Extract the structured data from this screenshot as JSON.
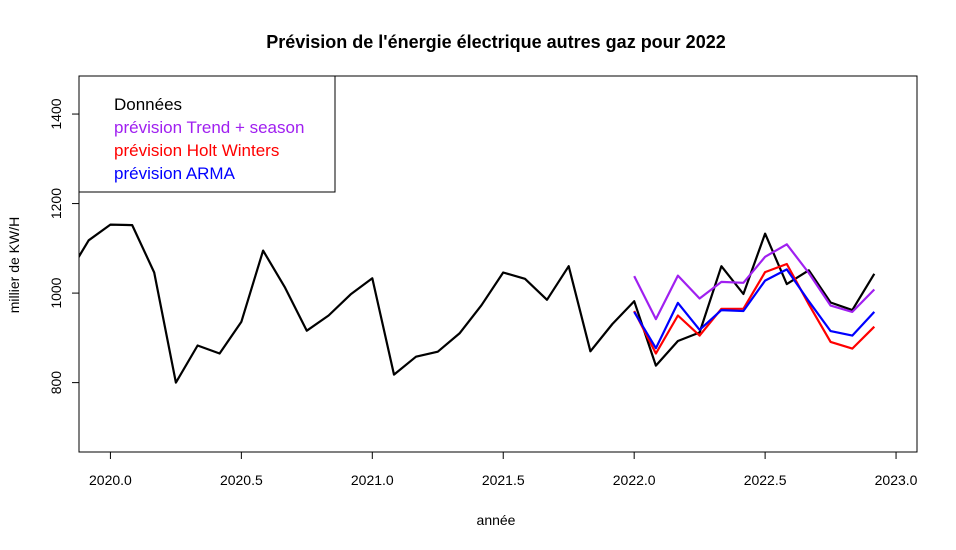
{
  "chart_data": {
    "type": "line",
    "title": "Prévision de l'énergie électrique autres gaz pour 2022",
    "xlabel": "année",
    "ylabel": "millier de KW/H",
    "xlim": [
      2019.88,
      2023.08
    ],
    "ylim": [
      645,
      1485
    ],
    "xticks": [
      2020.0,
      2020.5,
      2021.0,
      2021.5,
      2022.0,
      2022.5,
      2023.0
    ],
    "xtick_labels": [
      "2020.0",
      "2020.5",
      "2021.0",
      "2021.5",
      "2022.0",
      "2022.5",
      "2023.0"
    ],
    "yticks": [
      800,
      1000,
      1200,
      1400
    ],
    "ytick_labels": [
      "800",
      "1000",
      "1200",
      "1400"
    ],
    "grid": false,
    "legend_position": "top-left",
    "series": [
      {
        "name": "Données",
        "color": "#000000",
        "points": [
          [
            2019.875,
            1077
          ],
          [
            2019.917,
            1118
          ],
          [
            2020.0,
            1153
          ],
          [
            2020.083,
            1152
          ],
          [
            2020.167,
            1046
          ],
          [
            2020.25,
            800
          ],
          [
            2020.333,
            883
          ],
          [
            2020.417,
            865
          ],
          [
            2020.5,
            936
          ],
          [
            2020.583,
            1095
          ],
          [
            2020.667,
            1012
          ],
          [
            2020.75,
            916
          ],
          [
            2020.833,
            950
          ],
          [
            2020.917,
            997
          ],
          [
            2021.0,
            1033
          ],
          [
            2021.083,
            818
          ],
          [
            2021.167,
            858
          ],
          [
            2021.25,
            869
          ],
          [
            2021.333,
            910
          ],
          [
            2021.417,
            973
          ],
          [
            2021.5,
            1046
          ],
          [
            2021.583,
            1032
          ],
          [
            2021.667,
            985
          ],
          [
            2021.75,
            1060
          ],
          [
            2021.833,
            870
          ],
          [
            2021.917,
            931
          ],
          [
            2022.0,
            982
          ],
          [
            2022.083,
            838
          ],
          [
            2022.167,
            893
          ],
          [
            2022.25,
            912
          ],
          [
            2022.333,
            1060
          ],
          [
            2022.417,
            998
          ],
          [
            2022.5,
            1133
          ],
          [
            2022.583,
            1020
          ],
          [
            2022.667,
            1051
          ],
          [
            2022.75,
            979
          ],
          [
            2022.833,
            962
          ],
          [
            2022.917,
            1043
          ]
        ]
      },
      {
        "name": "prévision Trend + season",
        "color": "#a020f0",
        "points": [
          [
            2022.0,
            1038
          ],
          [
            2022.083,
            942
          ],
          [
            2022.167,
            1039
          ],
          [
            2022.25,
            988
          ],
          [
            2022.333,
            1025
          ],
          [
            2022.417,
            1023
          ],
          [
            2022.5,
            1081
          ],
          [
            2022.583,
            1109
          ],
          [
            2022.667,
            1045
          ],
          [
            2022.75,
            972
          ],
          [
            2022.833,
            958
          ],
          [
            2022.917,
            1008
          ]
        ]
      },
      {
        "name": "prévision Holt Winters",
        "color": "#ff0000",
        "points": [
          [
            2022.0,
            960
          ],
          [
            2022.083,
            865
          ],
          [
            2022.167,
            950
          ],
          [
            2022.25,
            905
          ],
          [
            2022.333,
            965
          ],
          [
            2022.417,
            965
          ],
          [
            2022.5,
            1047
          ],
          [
            2022.583,
            1065
          ],
          [
            2022.667,
            975
          ],
          [
            2022.75,
            891
          ],
          [
            2022.833,
            876
          ],
          [
            2022.917,
            925
          ]
        ]
      },
      {
        "name": "prévision ARMA",
        "color": "#0000ff",
        "points": [
          [
            2022.0,
            958
          ],
          [
            2022.083,
            877
          ],
          [
            2022.167,
            978
          ],
          [
            2022.25,
            918
          ],
          [
            2022.333,
            962
          ],
          [
            2022.417,
            960
          ],
          [
            2022.5,
            1028
          ],
          [
            2022.583,
            1053
          ],
          [
            2022.667,
            982
          ],
          [
            2022.75,
            915
          ],
          [
            2022.833,
            905
          ],
          [
            2022.917,
            958
          ]
        ]
      }
    ]
  }
}
